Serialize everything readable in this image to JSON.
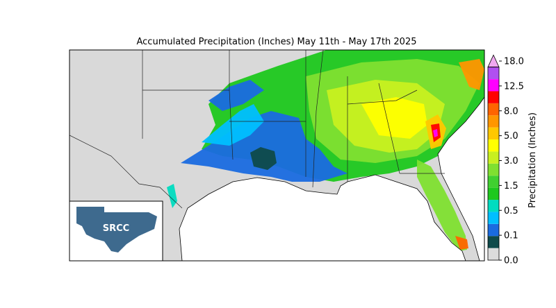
{
  "title": "Accumulated Precipitation (Inches) May 11th - May 17th 2025",
  "colorbar": {
    "label": "Precipitation (Inches)",
    "ticks": [
      "0.0",
      "0.1",
      "0.5",
      "1.5",
      "3.0",
      "5.0",
      "8.0",
      "12.5",
      "18.0"
    ],
    "colors": [
      "#dcdcdc",
      "#0f4a4a",
      "#1a6be0",
      "#00bfff",
      "#00dcc0",
      "#1ec81e",
      "#40d030",
      "#7fe030",
      "#c8f020",
      "#ffff00",
      "#ffc800",
      "#ff9600",
      "#ff6400",
      "#ff0000",
      "#ff00ff",
      "#b050f0",
      "#f0a8f0"
    ]
  },
  "logo": {
    "text": "SRCC"
  }
}
